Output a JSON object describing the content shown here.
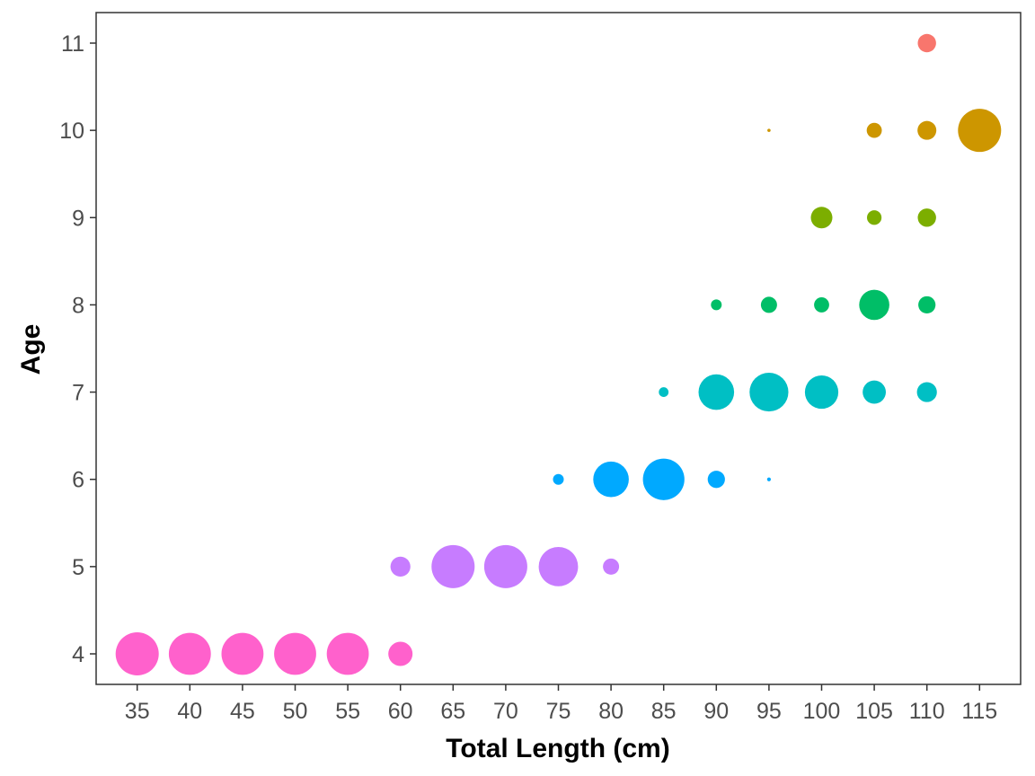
{
  "chart_data": {
    "type": "scatter",
    "title": "",
    "xlabel": "Total Length (cm)",
    "ylabel": "Age",
    "xlim": [
      31.1,
      118.9
    ],
    "ylim": [
      3.65,
      11.35
    ],
    "xticks": [
      35,
      40,
      45,
      50,
      55,
      60,
      65,
      70,
      75,
      80,
      85,
      90,
      95,
      100,
      105,
      110,
      115
    ],
    "yticks": [
      4,
      5,
      6,
      7,
      8,
      9,
      10,
      11
    ],
    "grid": false,
    "legend": "none",
    "series": [
      {
        "age": 4,
        "color": "#FF61CC",
        "points": [
          {
            "x": 35,
            "size": 0.8
          },
          {
            "x": 40,
            "size": 0.78
          },
          {
            "x": 45,
            "size": 0.78
          },
          {
            "x": 50,
            "size": 0.78
          },
          {
            "x": 55,
            "size": 0.78
          },
          {
            "x": 60,
            "size": 0.45
          }
        ]
      },
      {
        "age": 5,
        "color": "#C77CFF",
        "points": [
          {
            "x": 60,
            "size": 0.37
          },
          {
            "x": 65,
            "size": 0.8
          },
          {
            "x": 70,
            "size": 0.8
          },
          {
            "x": 75,
            "size": 0.73
          },
          {
            "x": 80,
            "size": 0.3
          }
        ]
      },
      {
        "age": 6,
        "color": "#00A9FF",
        "points": [
          {
            "x": 75,
            "size": 0.2
          },
          {
            "x": 80,
            "size": 0.66
          },
          {
            "x": 85,
            "size": 0.77
          },
          {
            "x": 90,
            "size": 0.32
          },
          {
            "x": 95,
            "size": 0.07
          }
        ]
      },
      {
        "age": 7,
        "color": "#00BFC4",
        "points": [
          {
            "x": 85,
            "size": 0.18
          },
          {
            "x": 90,
            "size": 0.66
          },
          {
            "x": 95,
            "size": 0.72
          },
          {
            "x": 100,
            "size": 0.62
          },
          {
            "x": 105,
            "size": 0.43
          },
          {
            "x": 110,
            "size": 0.37
          }
        ]
      },
      {
        "age": 8,
        "color": "#00BE67",
        "points": [
          {
            "x": 90,
            "size": 0.2
          },
          {
            "x": 95,
            "size": 0.3
          },
          {
            "x": 100,
            "size": 0.28
          },
          {
            "x": 105,
            "size": 0.56
          },
          {
            "x": 110,
            "size": 0.32
          }
        ]
      },
      {
        "age": 9,
        "color": "#7CAE00",
        "points": [
          {
            "x": 100,
            "size": 0.4
          },
          {
            "x": 105,
            "size": 0.27
          },
          {
            "x": 110,
            "size": 0.34
          }
        ]
      },
      {
        "age": 10,
        "color": "#CD9600",
        "points": [
          {
            "x": 95,
            "size": 0.06
          },
          {
            "x": 105,
            "size": 0.28
          },
          {
            "x": 110,
            "size": 0.35
          },
          {
            "x": 115,
            "size": 0.8
          }
        ]
      },
      {
        "age": 11,
        "color": "#F8766D",
        "points": [
          {
            "x": 110,
            "size": 0.34
          }
        ]
      }
    ]
  }
}
